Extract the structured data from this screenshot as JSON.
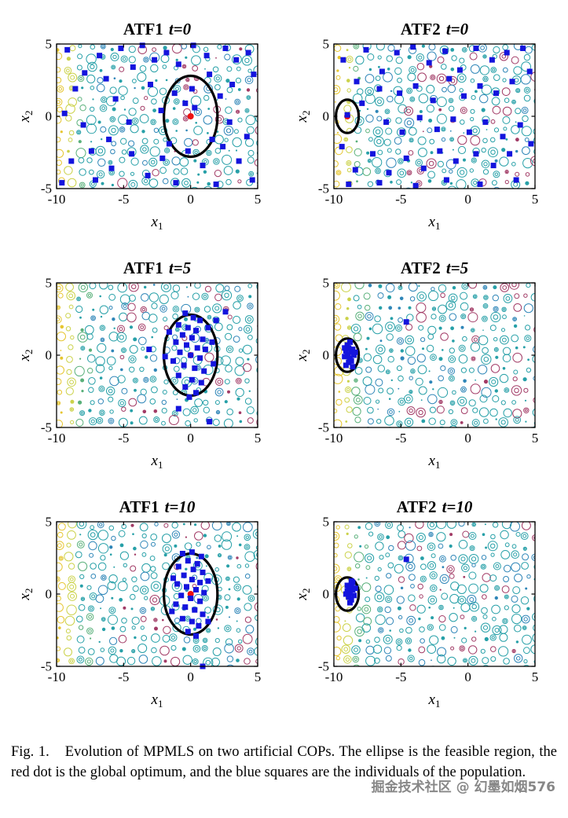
{
  "figure": {
    "caption_label": "Fig. 1.",
    "caption_text": "Evolution of MPMLS on two artificial COPs. The ellipse is the feasible region, the red dot is the global optimum, and the blue squares are the individuals of the population.",
    "watermark": "掘金技术社区 @ 幻墨如烟576"
  },
  "axes": {
    "x_var": "x",
    "x_sub": "1",
    "y_var": "x",
    "y_sub": "2",
    "x_ticks": [
      "-10",
      "-5",
      "0",
      "5"
    ],
    "y_ticks": [
      "-5",
      "0",
      "5"
    ]
  },
  "colors": {
    "square_blue": "#1414dd",
    "optimum_red": "#ee1111",
    "ellipse_black": "#000000",
    "axis_black": "#000000",
    "ring_palette": [
      "#e6c52f",
      "#cbd24a",
      "#59b07a",
      "#27a0a8",
      "#2f86b8",
      "#a23b66"
    ]
  },
  "chart_data": [
    {
      "type": "scatter",
      "title_name": "ATF1",
      "title_time": "t=0",
      "xlim": [
        -10,
        5
      ],
      "ylim": [
        -5,
        5
      ],
      "grid": false,
      "legend": "none",
      "background": "contour-ring field (yellow left fading to teal, magenta speckles right)",
      "ellipse": {
        "cx": 0,
        "cy": 0,
        "rx": 2.0,
        "ry": 2.8
      },
      "optimum": [
        0,
        0
      ],
      "seed": 11,
      "points": [
        [
          -9.2,
          4.6
        ],
        [
          -7.9,
          3.0
        ],
        [
          -8.6,
          1.9
        ],
        [
          -9.4,
          0.2
        ],
        [
          -8.0,
          -0.6
        ],
        [
          -6.8,
          4.2
        ],
        [
          -6.3,
          2.6
        ],
        [
          -5.2,
          4.7
        ],
        [
          -5.6,
          1.2
        ],
        [
          -4.3,
          3.4
        ],
        [
          -3.6,
          4.9
        ],
        [
          -2.7,
          3.9
        ],
        [
          -3.0,
          2.2
        ],
        [
          -1.8,
          4.4
        ],
        [
          -0.9,
          3.6
        ],
        [
          0.2,
          4.9
        ],
        [
          1.2,
          4.2
        ],
        [
          2.6,
          4.7
        ],
        [
          3.4,
          3.9
        ],
        [
          4.3,
          4.4
        ],
        [
          4.7,
          2.9
        ],
        [
          3.1,
          2.2
        ],
        [
          2.2,
          1.4
        ],
        [
          1.4,
          2.9
        ],
        [
          0.1,
          1.9
        ],
        [
          -0.4,
          0.9
        ],
        [
          0.3,
          0.6
        ],
        [
          -1.2,
          1.6
        ],
        [
          -2.2,
          0.4
        ],
        [
          -4.6,
          -0.4
        ],
        [
          -6.1,
          -1.6
        ],
        [
          -7.4,
          -2.4
        ],
        [
          -8.9,
          -3.1
        ],
        [
          -9.6,
          -4.6
        ],
        [
          -7.1,
          -4.4
        ],
        [
          -5.9,
          -3.6
        ],
        [
          -4.4,
          -2.6
        ],
        [
          -3.2,
          -4.1
        ],
        [
          -2.1,
          -2.9
        ],
        [
          -1.1,
          -4.6
        ],
        [
          -0.2,
          -2.4
        ],
        [
          0.9,
          -3.4
        ],
        [
          1.9,
          -4.7
        ],
        [
          2.4,
          -2.1
        ],
        [
          3.6,
          -3.1
        ],
        [
          4.6,
          -4.4
        ],
        [
          4.2,
          -1.4
        ],
        [
          2.9,
          -0.4
        ],
        [
          1.6,
          -1.6
        ],
        [
          -1.6,
          -1.9
        ]
      ]
    },
    {
      "type": "scatter",
      "title_name": "ATF2",
      "title_time": "t=0",
      "xlim": [
        -10,
        5
      ],
      "ylim": [
        -5,
        5
      ],
      "grid": false,
      "legend": "none",
      "background": "contour-ring field",
      "ellipse": {
        "cx": -9,
        "cy": 0,
        "rx": 0.85,
        "ry": 1.15
      },
      "optimum": [
        -9,
        0
      ],
      "seed": 22,
      "points": [
        [
          -9.0,
          0.1
        ],
        [
          -8.3,
          2.4
        ],
        [
          -9.3,
          3.9
        ],
        [
          -7.6,
          4.6
        ],
        [
          -6.4,
          3.1
        ],
        [
          -5.3,
          4.4
        ],
        [
          -4.1,
          4.8
        ],
        [
          -2.9,
          3.7
        ],
        [
          -1.7,
          4.5
        ],
        [
          -0.6,
          3.2
        ],
        [
          0.6,
          4.7
        ],
        [
          1.8,
          3.9
        ],
        [
          2.9,
          4.4
        ],
        [
          4.1,
          4.7
        ],
        [
          4.6,
          3.1
        ],
        [
          3.3,
          2.4
        ],
        [
          2.1,
          1.6
        ],
        [
          0.9,
          2.1
        ],
        [
          -0.3,
          1.4
        ],
        [
          -1.4,
          2.6
        ],
        [
          -2.6,
          1.1
        ],
        [
          -3.9,
          2.1
        ],
        [
          -5.1,
          1.6
        ],
        [
          -6.6,
          1.9
        ],
        [
          -7.9,
          0.9
        ],
        [
          -6.1,
          -0.4
        ],
        [
          -4.9,
          -1.1
        ],
        [
          -3.6,
          -0.1
        ],
        [
          -2.3,
          -0.9
        ],
        [
          -1.1,
          -0.2
        ],
        [
          0.1,
          -1.1
        ],
        [
          1.3,
          -0.4
        ],
        [
          2.6,
          -1.4
        ],
        [
          3.9,
          -0.6
        ],
        [
          4.7,
          -1.9
        ],
        [
          3.1,
          -2.6
        ],
        [
          1.9,
          -3.4
        ],
        [
          0.6,
          -2.6
        ],
        [
          -0.9,
          -3.1
        ],
        [
          -2.1,
          -2.4
        ],
        [
          -3.3,
          -3.6
        ],
        [
          -4.6,
          -2.9
        ],
        [
          -5.9,
          -3.9
        ],
        [
          -7.1,
          -2.6
        ],
        [
          -8.4,
          -3.7
        ],
        [
          -9.4,
          -2.1
        ],
        [
          -8.9,
          -4.7
        ],
        [
          -6.6,
          -4.6
        ],
        [
          -3.9,
          -4.8
        ],
        [
          -1.6,
          -4.4
        ],
        [
          0.9,
          -4.7
        ],
        [
          3.6,
          -4.4
        ]
      ]
    },
    {
      "type": "scatter",
      "title_name": "ATF1",
      "title_time": "t=5",
      "xlim": [
        -10,
        5
      ],
      "ylim": [
        -5,
        5
      ],
      "grid": false,
      "legend": "none",
      "background": "contour-ring field",
      "ellipse": {
        "cx": 0,
        "cy": 0,
        "rx": 2.0,
        "ry": 2.8
      },
      "optimum": [
        0,
        0
      ],
      "seed": 33,
      "points": [
        [
          -0.4,
          2.9
        ],
        [
          0.2,
          2.6
        ],
        [
          0.7,
          2.4
        ],
        [
          -0.9,
          2.1
        ],
        [
          -0.2,
          1.9
        ],
        [
          0.4,
          1.7
        ],
        [
          -0.6,
          1.4
        ],
        [
          0.1,
          1.2
        ],
        [
          0.9,
          1.1
        ],
        [
          -1.1,
          0.9
        ],
        [
          -0.3,
          0.7
        ],
        [
          0.5,
          0.5
        ],
        [
          1.1,
          0.4
        ],
        [
          -0.8,
          0.2
        ],
        [
          0.0,
          0.0
        ],
        [
          0.7,
          -0.2
        ],
        [
          -1.3,
          -0.4
        ],
        [
          -0.5,
          -0.7
        ],
        [
          0.3,
          -0.9
        ],
        [
          1.0,
          -1.1
        ],
        [
          -0.9,
          -1.4
        ],
        [
          0.1,
          -1.7
        ],
        [
          0.8,
          -1.9
        ],
        [
          -0.4,
          -2.2
        ],
        [
          0.4,
          -2.6
        ],
        [
          1.3,
          1.9
        ],
        [
          1.6,
          0.9
        ],
        [
          -1.6,
          1.6
        ],
        [
          -1.9,
          -0.1
        ],
        [
          1.7,
          -0.6
        ],
        [
          2.6,
          3.0
        ],
        [
          -3.1,
          0.4
        ],
        [
          -0.9,
          -3.7
        ],
        [
          1.4,
          -4.6
        ],
        [
          -0.1,
          -2.9
        ],
        [
          1.9,
          2.4
        ]
      ]
    },
    {
      "type": "scatter",
      "title_name": "ATF2",
      "title_time": "t=5",
      "xlim": [
        -10,
        5
      ],
      "ylim": [
        -5,
        5
      ],
      "grid": false,
      "legend": "none",
      "background": "contour-ring field",
      "ellipse": {
        "cx": -9,
        "cy": 0,
        "rx": 0.85,
        "ry": 1.15
      },
      "optimum": [
        -9,
        0
      ],
      "seed": 44,
      "points": [
        [
          -9.1,
          0.3
        ],
        [
          -8.9,
          0.5
        ],
        [
          -8.7,
          0.2
        ],
        [
          -9.0,
          0.0
        ],
        [
          -8.8,
          -0.2
        ],
        [
          -9.2,
          -0.1
        ],
        [
          -8.6,
          0.4
        ],
        [
          -8.9,
          -0.5
        ],
        [
          -9.1,
          -0.7
        ],
        [
          -8.7,
          -0.4
        ],
        [
          -8.5,
          0.0
        ],
        [
          -9.0,
          0.7
        ],
        [
          -8.8,
          0.9
        ],
        [
          -8.6,
          -0.8
        ],
        [
          -9.2,
          0.5
        ],
        [
          -8.4,
          0.2
        ],
        [
          -4.6,
          2.3
        ]
      ]
    },
    {
      "type": "scatter",
      "title_name": "ATF1",
      "title_time": "t=10",
      "xlim": [
        -10,
        5
      ],
      "ylim": [
        -5,
        5
      ],
      "grid": false,
      "legend": "none",
      "background": "contour-ring field",
      "ellipse": {
        "cx": 0,
        "cy": 0,
        "rx": 2.0,
        "ry": 2.8
      },
      "optimum": [
        0,
        0
      ],
      "seed": 55,
      "points": [
        [
          -0.6,
          2.8
        ],
        [
          0.1,
          2.9
        ],
        [
          0.8,
          2.6
        ],
        [
          -0.2,
          2.3
        ],
        [
          0.5,
          2.1
        ],
        [
          -0.9,
          1.9
        ],
        [
          0.2,
          1.7
        ],
        [
          0.9,
          1.5
        ],
        [
          -0.5,
          1.3
        ],
        [
          0.1,
          1.0
        ],
        [
          0.7,
          0.8
        ],
        [
          -1.0,
          0.7
        ],
        [
          -0.3,
          0.5
        ],
        [
          0.4,
          0.3
        ],
        [
          1.0,
          0.1
        ],
        [
          -0.7,
          -0.1
        ],
        [
          0.0,
          -0.3
        ],
        [
          0.7,
          -0.5
        ],
        [
          -1.1,
          -0.7
        ],
        [
          -0.4,
          -0.9
        ],
        [
          0.3,
          -1.1
        ],
        [
          0.9,
          -1.4
        ],
        [
          -0.6,
          -1.7
        ],
        [
          0.1,
          -1.9
        ],
        [
          0.6,
          -2.2
        ],
        [
          -0.2,
          -2.6
        ],
        [
          0.4,
          -2.9
        ],
        [
          -1.3,
          1.1
        ],
        [
          1.3,
          0.9
        ],
        [
          -1.4,
          -1.2
        ],
        [
          1.3,
          -1.9
        ],
        [
          0.9,
          -5.0
        ]
      ]
    },
    {
      "type": "scatter",
      "title_name": "ATF2",
      "title_time": "t=10",
      "xlim": [
        -10,
        5
      ],
      "ylim": [
        -5,
        5
      ],
      "grid": false,
      "legend": "none",
      "background": "contour-ring field",
      "ellipse": {
        "cx": -9,
        "cy": 0,
        "rx": 0.85,
        "ry": 1.15
      },
      "optimum": [
        -9,
        0
      ],
      "seed": 66,
      "points": [
        [
          -8.9,
          0.4
        ],
        [
          -8.7,
          0.6
        ],
        [
          -8.8,
          0.1
        ],
        [
          -9.0,
          0.2
        ],
        [
          -8.6,
          0.3
        ],
        [
          -8.9,
          -0.2
        ],
        [
          -8.7,
          -0.4
        ],
        [
          -9.1,
          0.0
        ],
        [
          -8.5,
          -0.1
        ],
        [
          -8.8,
          -0.6
        ],
        [
          -8.6,
          0.8
        ],
        [
          -9.0,
          0.6
        ],
        [
          -8.4,
          0.4
        ],
        [
          -8.7,
          0.9
        ],
        [
          -4.6,
          2.4
        ]
      ]
    }
  ]
}
